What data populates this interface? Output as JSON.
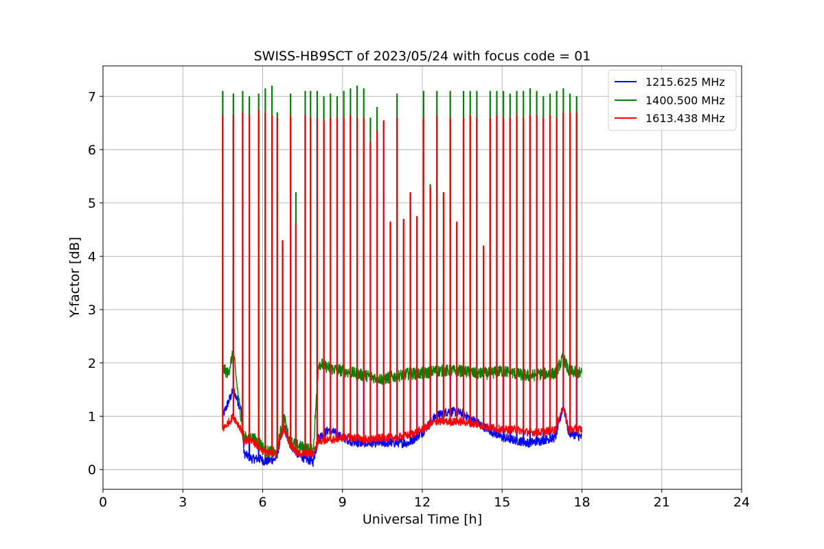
{
  "chart_data": {
    "type": "line",
    "title": "SWISS-HB9SCT of 2023/05/24 with focus code = 01",
    "xlabel": "Universal Time [h]",
    "ylabel": "Y-factor [dB]",
    "xlim": [
      0,
      24
    ],
    "ylim": [
      -0.37,
      7.57
    ],
    "xticks": [
      0,
      3,
      6,
      9,
      12,
      15,
      18,
      21,
      24
    ],
    "yticks": [
      0,
      1,
      2,
      3,
      4,
      5,
      6,
      7
    ],
    "grid": true,
    "legend_position": "top-right",
    "calibration_spikes": {
      "description_none": "",
      "times": [
        4.5,
        4.9,
        5.25,
        5.5,
        5.85,
        6.1,
        6.35,
        6.55,
        6.75,
        7.05,
        7.25,
        7.6,
        7.8,
        8.05,
        8.3,
        8.55,
        8.8,
        9.05,
        9.3,
        9.55,
        9.8,
        10.05,
        10.3,
        10.55,
        10.8,
        11.05,
        11.3,
        11.55,
        11.8,
        12.05,
        12.3,
        12.55,
        12.8,
        13.05,
        13.3,
        13.55,
        13.8,
        14.05,
        14.3,
        14.55,
        14.8,
        15.05,
        15.3,
        15.55,
        15.8,
        16.05,
        16.3,
        16.55,
        16.8,
        17.05,
        17.3,
        17.55,
        17.8
      ],
      "peak_green": [
        7.1,
        7.05,
        7.1,
        7.0,
        7.05,
        7.15,
        7.2,
        6.7,
        4.3,
        7.05,
        5.2,
        7.1,
        7.1,
        7.1,
        7.0,
        7.05,
        7.0,
        7.1,
        7.15,
        7.2,
        7.15,
        6.6,
        6.8,
        6.5,
        4.65,
        7.05,
        4.7,
        5.2,
        4.75,
        7.1,
        5.35,
        7.1,
        5.2,
        7.1,
        4.65,
        7.1,
        7.1,
        7.1,
        4.2,
        7.1,
        7.1,
        7.1,
        7.05,
        7.1,
        7.1,
        7.15,
        7.1,
        7.0,
        7.05,
        7.1,
        7.15,
        7.05,
        7.0
      ],
      "peak_red": [
        6.65,
        6.65,
        6.7,
        6.65,
        6.75,
        6.7,
        6.65,
        6.6,
        4.3,
        6.65,
        4.6,
        6.65,
        6.6,
        6.6,
        6.55,
        6.6,
        6.6,
        6.6,
        6.65,
        6.6,
        6.6,
        6.15,
        6.35,
        6.55,
        4.65,
        6.6,
        4.7,
        5.2,
        4.75,
        6.6,
        5.3,
        6.65,
        5.2,
        6.6,
        4.65,
        6.6,
        6.65,
        6.6,
        4.2,
        6.6,
        6.65,
        6.6,
        6.6,
        6.65,
        6.6,
        6.65,
        6.65,
        6.6,
        6.65,
        6.6,
        6.7,
        6.7,
        6.7
      ]
    },
    "series": [
      {
        "name": "1215.625 MHz",
        "color": "#0000ff",
        "x": [
          4.5,
          4.9,
          5.2,
          5.3,
          5.6,
          5.9,
          6.1,
          6.5,
          6.8,
          7.0,
          7.3,
          7.6,
          7.9,
          8.1,
          8.5,
          9.0,
          9.5,
          10.0,
          10.5,
          11.0,
          11.5,
          12.0,
          12.5,
          13.0,
          13.5,
          14.0,
          14.5,
          15.0,
          15.5,
          16.0,
          16.5,
          17.0,
          17.3,
          17.5,
          18.0
        ],
        "y": [
          1.0,
          1.5,
          1.1,
          0.3,
          0.2,
          0.2,
          0.15,
          0.2,
          0.8,
          0.5,
          0.3,
          0.2,
          0.15,
          0.6,
          0.75,
          0.6,
          0.5,
          0.5,
          0.5,
          0.5,
          0.5,
          0.7,
          1.0,
          1.1,
          1.05,
          0.9,
          0.75,
          0.6,
          0.55,
          0.5,
          0.55,
          0.6,
          1.2,
          0.7,
          0.6
        ]
      },
      {
        "name": "1400.500 MHz",
        "color": "#008000",
        "x": [
          4.5,
          4.7,
          4.9,
          5.1,
          5.3,
          5.6,
          5.9,
          6.1,
          6.5,
          6.8,
          7.0,
          7.3,
          7.6,
          7.9,
          8.1,
          8.5,
          9.0,
          9.5,
          10.0,
          10.5,
          11.0,
          11.5,
          12.0,
          12.5,
          13.0,
          13.5,
          14.0,
          14.5,
          15.0,
          15.5,
          16.0,
          16.5,
          17.0,
          17.3,
          17.5,
          18.0
        ],
        "y": [
          1.9,
          1.8,
          2.2,
          1.3,
          0.6,
          0.6,
          0.5,
          0.35,
          0.3,
          1.0,
          0.55,
          0.45,
          0.4,
          0.35,
          2.0,
          1.9,
          1.85,
          1.8,
          1.75,
          1.7,
          1.75,
          1.8,
          1.8,
          1.85,
          1.85,
          1.85,
          1.8,
          1.8,
          1.85,
          1.8,
          1.75,
          1.8,
          1.8,
          2.1,
          1.85,
          1.8
        ]
      },
      {
        "name": "1613.438 MHz",
        "color": "#ff0000",
        "x": [
          4.5,
          4.9,
          5.2,
          5.3,
          5.6,
          5.9,
          6.1,
          6.5,
          6.8,
          7.0,
          7.3,
          7.6,
          7.9,
          8.1,
          8.5,
          9.0,
          9.5,
          10.0,
          10.5,
          11.0,
          11.5,
          12.0,
          12.5,
          13.0,
          13.5,
          14.0,
          14.5,
          15.0,
          15.5,
          16.0,
          16.5,
          17.0,
          17.3,
          17.5,
          18.0
        ],
        "y": [
          0.75,
          1.0,
          0.75,
          0.5,
          0.55,
          0.4,
          0.3,
          0.3,
          0.8,
          0.5,
          0.3,
          0.3,
          0.3,
          0.55,
          0.55,
          0.6,
          0.6,
          0.55,
          0.6,
          0.6,
          0.65,
          0.75,
          0.9,
          0.9,
          0.9,
          0.85,
          0.8,
          0.75,
          0.75,
          0.7,
          0.7,
          0.75,
          1.2,
          0.75,
          0.75
        ]
      }
    ]
  }
}
